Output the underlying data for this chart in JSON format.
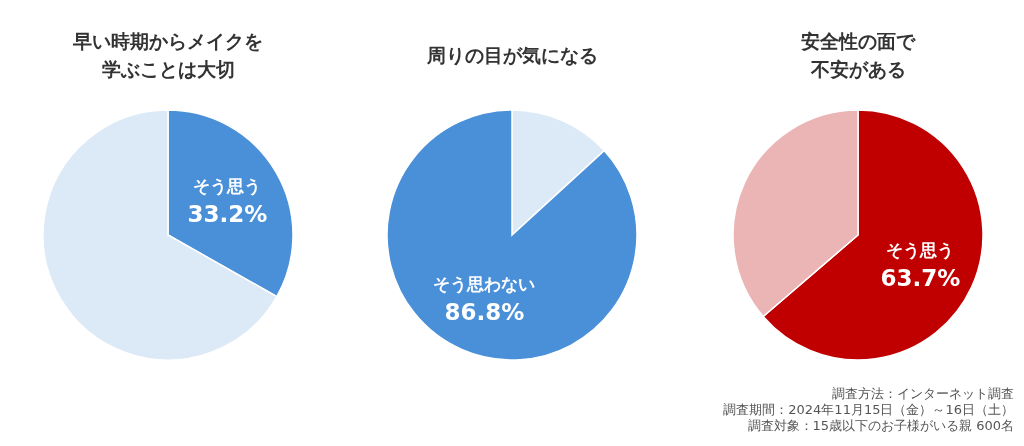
{
  "chart_data": [
    {
      "type": "pie",
      "title": "早い時期からメイクを学ぶことは大切",
      "categories": [
        "そう思う",
        null
      ],
      "values": [
        33.2,
        66.8
      ],
      "colors": [
        "#4a90d9",
        "#dce9f6"
      ],
      "value_labels": [
        "33.2%",
        null
      ]
    },
    {
      "type": "pie",
      "title": "周りの目が気になる",
      "categories": [
        null,
        "そう思わない"
      ],
      "values": [
        13.2,
        86.8
      ],
      "colors": [
        "#dce9f6",
        "#4a90d9"
      ],
      "value_labels": [
        null,
        "86.8%"
      ]
    },
    {
      "type": "pie",
      "title": "安全性の面で不安がある",
      "categories": [
        "そう思う",
        null
      ],
      "values": [
        63.7,
        36.3
      ],
      "colors": [
        "#c00000",
        "#ebb5b5"
      ],
      "value_labels": [
        "63.7%",
        null
      ],
      "annotations": [
        "調査方法：インターネット調査",
        "調査期間：2024年11月15日（金）～16日（土）",
        "調査対象：15歳以下のお子様がいる親 600名"
      ]
    }
  ]
}
